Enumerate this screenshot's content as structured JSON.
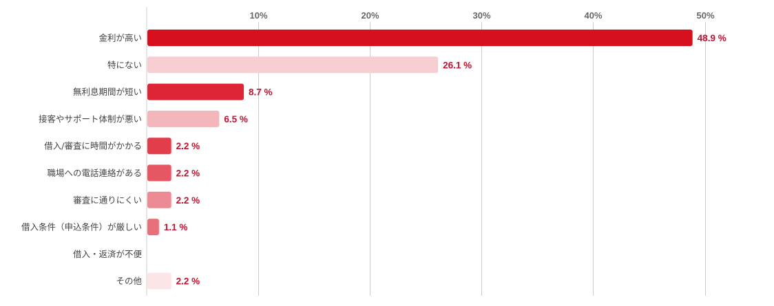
{
  "chart_data": {
    "type": "bar",
    "orientation": "horizontal",
    "title": "",
    "xlabel": "",
    "ylabel": "",
    "xlim": [
      0,
      53.3
    ],
    "x_ticks": [
      {
        "value": 10,
        "label": "10%"
      },
      {
        "value": 20,
        "label": "20%"
      },
      {
        "value": 30,
        "label": "30%"
      },
      {
        "value": 40,
        "label": "40%"
      },
      {
        "value": 50,
        "label": "50%"
      }
    ],
    "tick_position": "top",
    "grid": true,
    "legend": "none",
    "categories": [
      {
        "name": "金利が高い",
        "value": 48.9,
        "label": "48.9 %",
        "color": "#d7101f"
      },
      {
        "name": "特にない",
        "value": 26.1,
        "label": "26.1 %",
        "color": "#f7cfd3"
      },
      {
        "name": "無利息期間が短い",
        "value": 8.7,
        "label": "8.7 %",
        "color": "#dd2535"
      },
      {
        "name": "接客やサポート体制が悪い",
        "value": 6.5,
        "label": "6.5 %",
        "color": "#f2b6bb"
      },
      {
        "name": "借入/審査に時間がかかる",
        "value": 2.2,
        "label": "2.2 %",
        "color": "#e23d4b"
      },
      {
        "name": "職場への電話連絡がある",
        "value": 2.2,
        "label": "2.2 %",
        "color": "#e55763"
      },
      {
        "name": "審査に通りにくい",
        "value": 2.2,
        "label": "2.2 %",
        "color": "#ec8a93"
      },
      {
        "name": "借入条件（申込条件）が厳しい",
        "value": 1.1,
        "label": "1.1 %",
        "color": "#e8707b"
      },
      {
        "name": "借入・返済が不便",
        "value": 0,
        "label": "",
        "color": "#f5d0d4"
      },
      {
        "name": "その他",
        "value": 2.2,
        "label": "2.2 %",
        "color": "#fbe5e7"
      }
    ],
    "colors": {
      "grid": "#cccccc",
      "axis": "#cccccc",
      "data_label": "#c8102e"
    }
  }
}
